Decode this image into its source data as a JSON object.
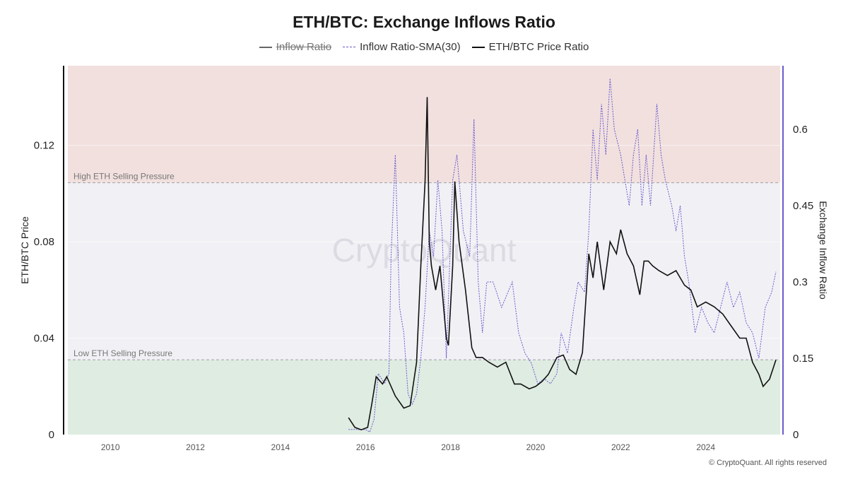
{
  "chart_data": {
    "type": "line",
    "title": "ETH/BTC: Exchange Inflows Ratio",
    "legend": {
      "placement": "top-center",
      "entries": [
        {
          "name": "Inflow Ratio",
          "hidden": true
        },
        {
          "name": "Inflow Ratio-SMA(30)",
          "hidden": false
        },
        {
          "name": "ETH/BTC Price Ratio",
          "hidden": false
        }
      ]
    },
    "x_axis": {
      "ticks": [
        "2010",
        "2012",
        "2014",
        "2016",
        "2018",
        "2020",
        "2022",
        "2024"
      ],
      "range": [
        2009.0,
        2025.75
      ]
    },
    "y_left": {
      "label": "ETH/BTC Price",
      "ticks": [
        "0",
        "0.04",
        "0.08",
        "0.12"
      ],
      "range": [
        0,
        0.153
      ]
    },
    "y_right": {
      "label": "Exchange Inflow Ratio",
      "ticks": [
        "0",
        "0.15",
        "0.3",
        "0.45",
        "0.6"
      ],
      "range": [
        0,
        0.725
      ]
    },
    "zones": {
      "high": {
        "label": "High ETH Selling Pressure",
        "threshold": 0.495,
        "color": "#f1e0de"
      },
      "low": {
        "label": "Low ETH Selling Pressure",
        "threshold": 0.147,
        "color": "#dfece2"
      },
      "mid_color": "#f1f1f5"
    },
    "watermark": "CryptoQuant",
    "series": [
      {
        "name": "ETH/BTC Price Ratio",
        "axis": "left",
        "color": "#111111",
        "x": [
          2015.6,
          2015.75,
          2015.9,
          2016.05,
          2016.15,
          2016.25,
          2016.4,
          2016.5,
          2016.7,
          2016.9,
          2017.05,
          2017.2,
          2017.3,
          2017.4,
          2017.45,
          2017.5,
          2017.55,
          2017.65,
          2017.75,
          2017.9,
          2017.95,
          2018.05,
          2018.1,
          2018.2,
          2018.35,
          2018.5,
          2018.6,
          2018.75,
          2018.9,
          2019.1,
          2019.3,
          2019.5,
          2019.65,
          2019.85,
          2020.0,
          2020.15,
          2020.3,
          2020.5,
          2020.65,
          2020.8,
          2020.95,
          2021.1,
          2021.25,
          2021.35,
          2021.45,
          2021.6,
          2021.75,
          2021.9,
          2022.0,
          2022.15,
          2022.3,
          2022.45,
          2022.55,
          2022.65,
          2022.75,
          2022.9,
          2023.1,
          2023.3,
          2023.5,
          2023.65,
          2023.8,
          2024.0,
          2024.2,
          2024.4,
          2024.6,
          2024.8,
          2024.95,
          2025.1,
          2025.25,
          2025.35,
          2025.5,
          2025.65
        ],
        "y": [
          0.007,
          0.003,
          0.002,
          0.003,
          0.013,
          0.024,
          0.021,
          0.024,
          0.016,
          0.011,
          0.012,
          0.03,
          0.07,
          0.105,
          0.14,
          0.08,
          0.07,
          0.06,
          0.07,
          0.04,
          0.037,
          0.07,
          0.105,
          0.08,
          0.06,
          0.036,
          0.032,
          0.032,
          0.03,
          0.028,
          0.03,
          0.021,
          0.021,
          0.019,
          0.02,
          0.022,
          0.025,
          0.032,
          0.033,
          0.027,
          0.025,
          0.034,
          0.075,
          0.065,
          0.08,
          0.06,
          0.08,
          0.075,
          0.085,
          0.075,
          0.07,
          0.058,
          0.072,
          0.072,
          0.07,
          0.068,
          0.066,
          0.068,
          0.062,
          0.06,
          0.053,
          0.055,
          0.053,
          0.05,
          0.045,
          0.04,
          0.04,
          0.03,
          0.025,
          0.02,
          0.023,
          0.031
        ]
      },
      {
        "name": "Inflow Ratio-SMA(30)",
        "axis": "right",
        "color": "#6a5acd",
        "x": [
          2015.6,
          2015.8,
          2016.0,
          2016.1,
          2016.2,
          2016.3,
          2016.45,
          2016.55,
          2016.6,
          2016.7,
          2016.8,
          2016.9,
          2017.0,
          2017.1,
          2017.2,
          2017.3,
          2017.4,
          2017.5,
          2017.6,
          2017.7,
          2017.8,
          2017.9,
          2018.05,
          2018.15,
          2018.3,
          2018.45,
          2018.55,
          2018.65,
          2018.75,
          2018.85,
          2019.0,
          2019.2,
          2019.45,
          2019.6,
          2019.75,
          2019.9,
          2020.05,
          2020.2,
          2020.35,
          2020.5,
          2020.6,
          2020.75,
          2020.9,
          2021.0,
          2021.15,
          2021.25,
          2021.35,
          2021.45,
          2021.55,
          2021.65,
          2021.75,
          2021.85,
          2022.0,
          2022.1,
          2022.2,
          2022.3,
          2022.4,
          2022.5,
          2022.6,
          2022.7,
          2022.85,
          2022.95,
          2023.05,
          2023.2,
          2023.3,
          2023.4,
          2023.5,
          2023.6,
          2023.75,
          2023.9,
          2024.05,
          2024.2,
          2024.35,
          2024.5,
          2024.65,
          2024.8,
          2024.95,
          2025.1,
          2025.25,
          2025.4,
          2025.55,
          2025.65
        ],
        "y": [
          0.01,
          0.01,
          0.01,
          0.005,
          0.03,
          0.12,
          0.1,
          0.12,
          0.35,
          0.55,
          0.25,
          0.2,
          0.08,
          0.06,
          0.08,
          0.15,
          0.25,
          0.4,
          0.35,
          0.5,
          0.4,
          0.15,
          0.5,
          0.55,
          0.4,
          0.35,
          0.62,
          0.3,
          0.2,
          0.3,
          0.3,
          0.25,
          0.3,
          0.2,
          0.16,
          0.14,
          0.1,
          0.11,
          0.1,
          0.12,
          0.2,
          0.16,
          0.25,
          0.3,
          0.28,
          0.4,
          0.6,
          0.5,
          0.65,
          0.55,
          0.7,
          0.6,
          0.55,
          0.5,
          0.45,
          0.55,
          0.6,
          0.45,
          0.55,
          0.45,
          0.65,
          0.55,
          0.5,
          0.45,
          0.4,
          0.45,
          0.35,
          0.3,
          0.2,
          0.25,
          0.22,
          0.2,
          0.25,
          0.3,
          0.25,
          0.28,
          0.22,
          0.2,
          0.15,
          0.25,
          0.28,
          0.32
        ]
      }
    ]
  },
  "footer": "© CryptoQuant. All rights reserved"
}
